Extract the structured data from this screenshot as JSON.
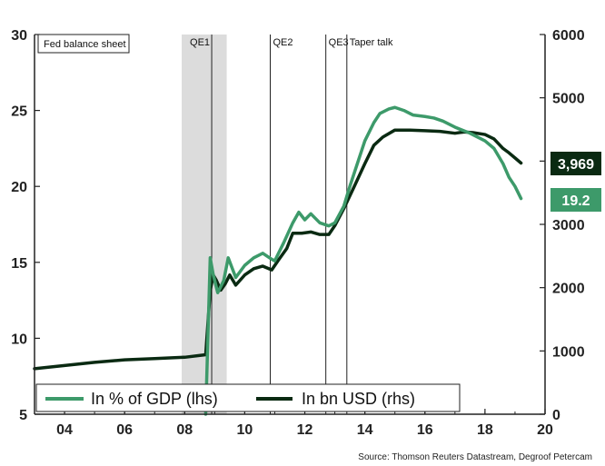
{
  "chart_data": {
    "type": "line",
    "title": "Fed balance sheet",
    "source": "Source: Thomson Reuters Datastream, Degroof Petercam",
    "colors": {
      "gdp": "#3d9a6a",
      "usd": "#0a2a12",
      "shade": "#dcdcdc"
    },
    "x_ticks": [
      "04",
      "06",
      "08",
      "10",
      "12",
      "14",
      "16",
      "18",
      "20"
    ],
    "y_left": {
      "ticks": [
        "30",
        "25",
        "20",
        "15",
        "10",
        "5"
      ],
      "ylim": [
        5,
        30
      ]
    },
    "y_right": {
      "ticks": [
        "6000",
        "5000",
        "4000",
        "3000",
        "2000",
        "1000",
        "0"
      ],
      "ylim": [
        0,
        6000
      ]
    },
    "events": [
      {
        "label": "QE1",
        "x": 2008.9
      },
      {
        "label": "QE2",
        "x": 2010.85
      },
      {
        "label": "QE3",
        "x": 2012.7
      },
      {
        "label": "Taper talk",
        "x": 2013.4
      }
    ],
    "shaded_period": {
      "start": 2007.9,
      "end": 2009.4
    },
    "legend_position": "bottom-left",
    "series": [
      {
        "name": "In % of GDP (lhs)",
        "axis": "left",
        "end_label": "19.2",
        "points": [
          [
            2008.7,
            5.0
          ],
          [
            2008.85,
            15.3
          ],
          [
            2008.95,
            14.2
          ],
          [
            2009.1,
            13.0
          ],
          [
            2009.3,
            13.8
          ],
          [
            2009.45,
            15.3
          ],
          [
            2009.7,
            14.0
          ],
          [
            2010.0,
            14.8
          ],
          [
            2010.3,
            15.3
          ],
          [
            2010.6,
            15.6
          ],
          [
            2010.9,
            15.2
          ],
          [
            2011.0,
            15.1
          ],
          [
            2011.3,
            16.3
          ],
          [
            2011.6,
            17.6
          ],
          [
            2011.8,
            18.3
          ],
          [
            2012.0,
            17.8
          ],
          [
            2012.2,
            18.2
          ],
          [
            2012.5,
            17.6
          ],
          [
            2012.8,
            17.4
          ],
          [
            2013.0,
            17.6
          ],
          [
            2013.3,
            18.7
          ],
          [
            2013.5,
            20.0
          ],
          [
            2013.8,
            21.8
          ],
          [
            2014.0,
            23.0
          ],
          [
            2014.3,
            24.2
          ],
          [
            2014.5,
            24.8
          ],
          [
            2014.8,
            25.1
          ],
          [
            2015.0,
            25.2
          ],
          [
            2015.3,
            25.0
          ],
          [
            2015.6,
            24.7
          ],
          [
            2016.0,
            24.6
          ],
          [
            2016.3,
            24.5
          ],
          [
            2016.6,
            24.3
          ],
          [
            2017.0,
            23.9
          ],
          [
            2017.5,
            23.5
          ],
          [
            2018.0,
            23.0
          ],
          [
            2018.3,
            22.5
          ],
          [
            2018.6,
            21.5
          ],
          [
            2018.8,
            20.6
          ],
          [
            2019.0,
            20.0
          ],
          [
            2019.2,
            19.2
          ]
        ]
      },
      {
        "name": "In bn USD (rhs)",
        "axis": "right",
        "end_label": "3,969",
        "points": [
          [
            2003.0,
            720
          ],
          [
            2004.0,
            770
          ],
          [
            2005.0,
            820
          ],
          [
            2006.0,
            860
          ],
          [
            2007.0,
            880
          ],
          [
            2008.0,
            900
          ],
          [
            2008.7,
            940
          ],
          [
            2008.85,
            1950
          ],
          [
            2008.95,
            2200
          ],
          [
            2009.05,
            2120
          ],
          [
            2009.2,
            1960
          ],
          [
            2009.35,
            2060
          ],
          [
            2009.5,
            2200
          ],
          [
            2009.7,
            2040
          ],
          [
            2010.0,
            2200
          ],
          [
            2010.3,
            2300
          ],
          [
            2010.6,
            2340
          ],
          [
            2010.9,
            2280
          ],
          [
            2011.1,
            2420
          ],
          [
            2011.4,
            2620
          ],
          [
            2011.6,
            2860
          ],
          [
            2011.9,
            2860
          ],
          [
            2012.2,
            2880
          ],
          [
            2012.5,
            2840
          ],
          [
            2012.8,
            2840
          ],
          [
            2013.0,
            2980
          ],
          [
            2013.3,
            3250
          ],
          [
            2013.6,
            3550
          ],
          [
            2014.0,
            3960
          ],
          [
            2014.3,
            4250
          ],
          [
            2014.6,
            4380
          ],
          [
            2015.0,
            4490
          ],
          [
            2015.5,
            4490
          ],
          [
            2016.0,
            4480
          ],
          [
            2016.5,
            4470
          ],
          [
            2017.0,
            4440
          ],
          [
            2017.3,
            4460
          ],
          [
            2017.6,
            4450
          ],
          [
            2018.0,
            4420
          ],
          [
            2018.3,
            4350
          ],
          [
            2018.6,
            4200
          ],
          [
            2018.8,
            4130
          ],
          [
            2019.0,
            4050
          ],
          [
            2019.2,
            3969
          ]
        ]
      }
    ]
  }
}
